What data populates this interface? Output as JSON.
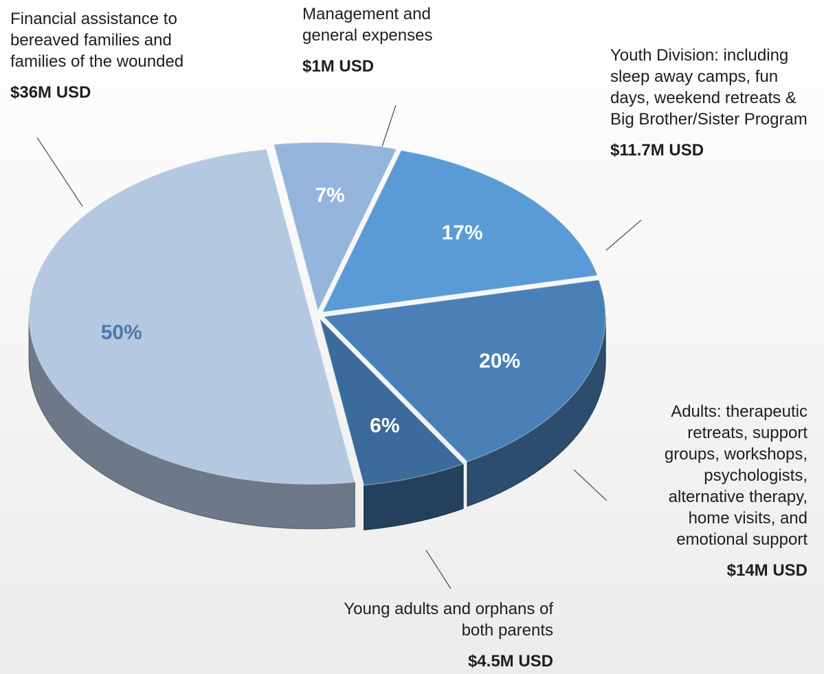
{
  "chart_data": {
    "type": "pie",
    "categories": [
      "Management and general expenses",
      "Youth Division: including sleep away camps, fun days, weekend retreats & Big Brother/Sister Program",
      "Adults: therapeutic retreats, support groups, workshops, psychologists, alternative therapy, home visits, and emotional support",
      "Young adults and orphans of both parents",
      "Financial assistance to bereaved families and families of the wounded"
    ],
    "values": [
      7,
      17,
      20,
      6,
      50
    ],
    "value_labels": [
      "7%",
      "17%",
      "20%",
      "6%",
      "50%"
    ],
    "amounts": [
      "$1M USD",
      "$11.7M USD",
      "$14M USD",
      "$4.5M USD",
      "$36M USD"
    ],
    "colors": [
      "#94b4dc",
      "#5a9ad6",
      "#4a80b6",
      "#3b6b9a",
      "#b5c8e2"
    ]
  }
}
